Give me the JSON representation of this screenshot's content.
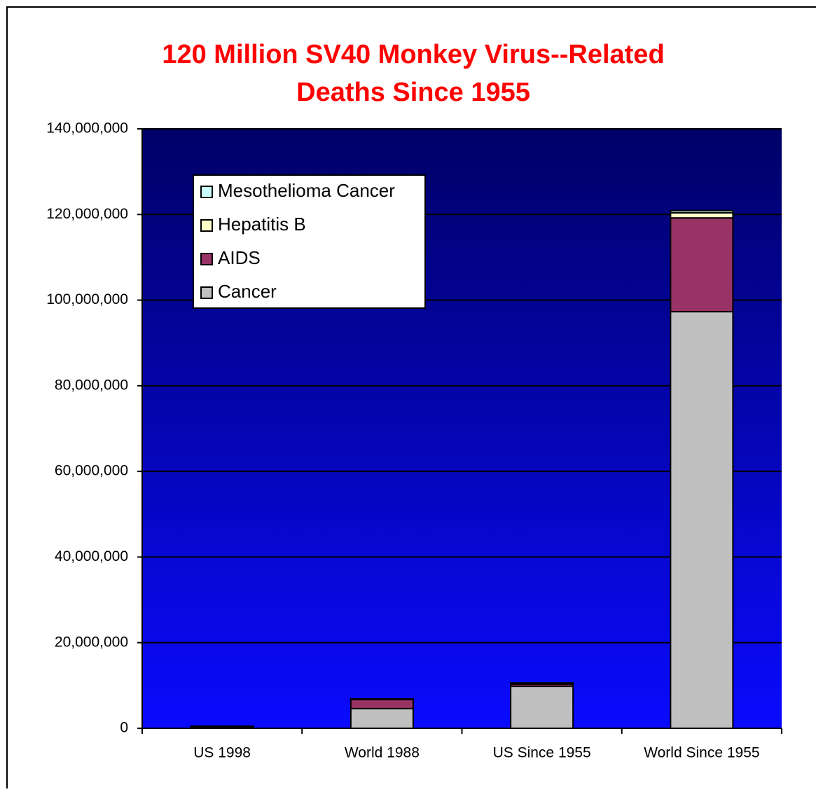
{
  "chart_data": {
    "type": "stacked_bar",
    "title": [
      "120 Million SV40 Monkey Virus--Related",
      "Deaths Since 1955"
    ],
    "categories": [
      "US 1998",
      "World 1988",
      "US Since 1955",
      "World Since 1955"
    ],
    "series": [
      {
        "name": "Cancer",
        "color": "#c0c0c0",
        "values": [
          300000,
          4600000,
          9800000,
          97300000
        ]
      },
      {
        "name": "AIDS",
        "color": "#993366",
        "values": [
          100000,
          2100000,
          500000,
          21900000
        ]
      },
      {
        "name": "Hepatitis B",
        "color": "#ffffcc",
        "values": [
          50000,
          100000,
          200000,
          1200000
        ]
      },
      {
        "name": "Mesothelioma Cancer",
        "color": "#ccffff",
        "values": [
          50000,
          50000,
          100000,
          500000
        ]
      }
    ],
    "ylim": [
      0,
      140000000
    ],
    "yticks": [
      {
        "value": 0,
        "label": "0"
      },
      {
        "value": 20000000,
        "label": "20,000,000"
      },
      {
        "value": 40000000,
        "label": "40,000,000"
      },
      {
        "value": 60000000,
        "label": "60,000,000"
      },
      {
        "value": 80000000,
        "label": "80,000,000"
      },
      {
        "value": 100000000,
        "label": "100,000,000"
      },
      {
        "value": 120000000,
        "label": "120,000,000"
      },
      {
        "value": 140000000,
        "label": "140,000,000"
      }
    ],
    "grid": true,
    "legend": "upper left"
  }
}
